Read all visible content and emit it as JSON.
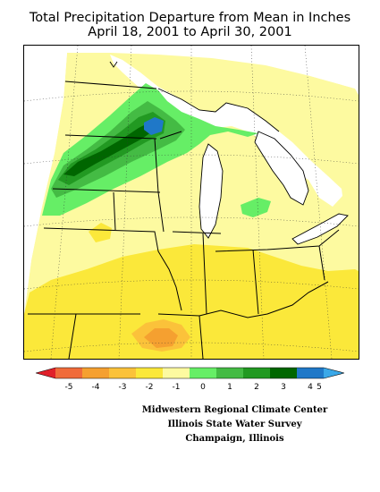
{
  "title": {
    "line1": "Total Precipitation Departure from Mean in Inches",
    "line2": "April 18, 2001 to April 30, 2001"
  },
  "legend": {
    "labels": [
      "-5",
      "-4",
      "-3",
      "-2",
      "-1",
      "0",
      "1",
      "2",
      "3",
      "4",
      "5"
    ],
    "colors": [
      "#e0202a",
      "#f06b3a",
      "#f5a030",
      "#fbc23a",
      "#fbe83a",
      "#fdfaa0",
      "#66ee66",
      "#44bb44",
      "#229922",
      "#006600",
      "#1f78c8",
      "#3aa8e8"
    ]
  },
  "map": {
    "colors": {
      "dry1": "#fdfaa0",
      "dry2": "#fbe83a",
      "dry3": "#fbc23a",
      "dry4": "#f5a030",
      "wet1": "#66ee66",
      "wet2": "#44bb44",
      "wet3": "#229922",
      "wet4": "#006600",
      "wet5": "#1f78c8",
      "water": "#ffffff"
    }
  },
  "credits": {
    "line1": "Midwestern Regional Climate Center",
    "line2": "Illinois State Water Survey",
    "line3": "Champaign, Illinois"
  }
}
